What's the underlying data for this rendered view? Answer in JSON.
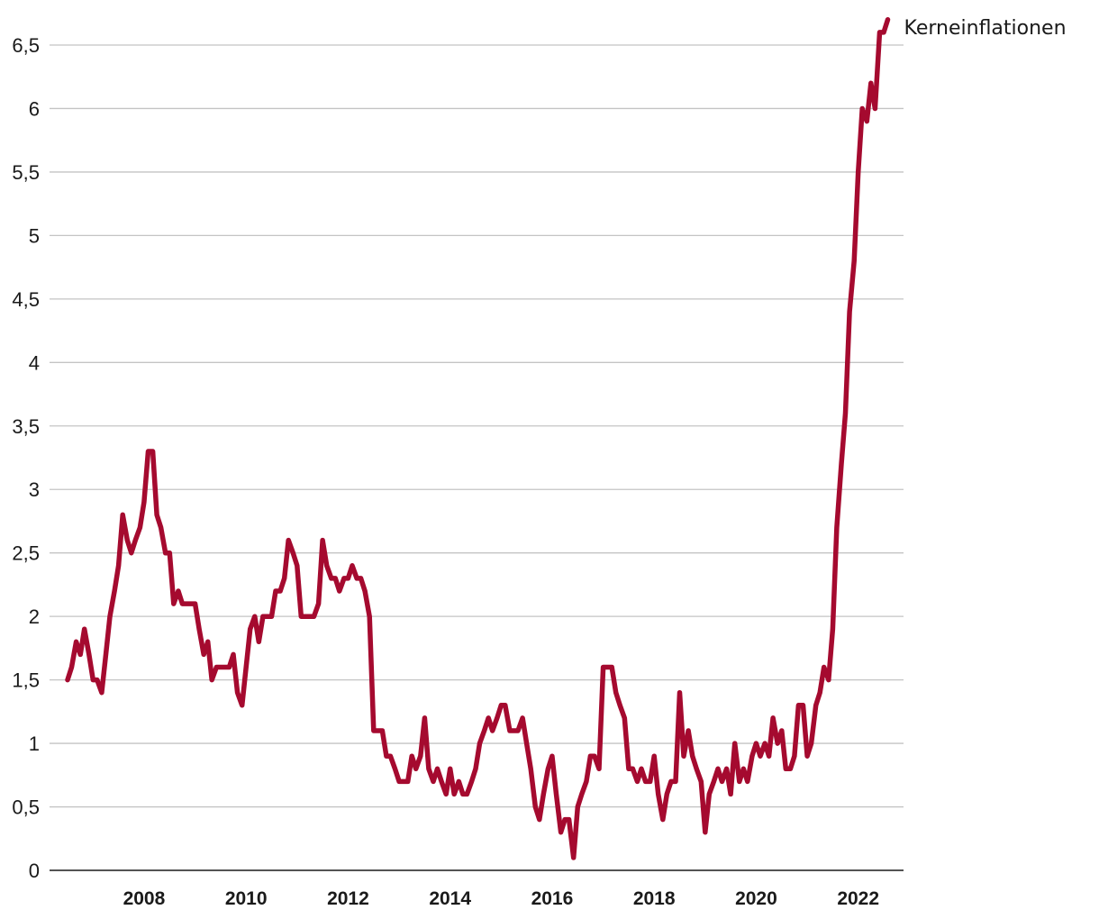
{
  "chart_data": {
    "type": "line",
    "title": "",
    "xlabel": "",
    "ylabel": "",
    "ylim": [
      0,
      6.5
    ],
    "y_ticks": [
      0,
      0.5,
      1,
      1.5,
      2,
      2.5,
      3,
      3.5,
      4,
      4.5,
      5,
      5.5,
      6,
      6.5
    ],
    "y_tick_labels": [
      "0",
      "0,5",
      "1",
      "1,5",
      "2",
      "2,5",
      "3",
      "3,5",
      "4",
      "4,5",
      "5",
      "5,5",
      "6",
      "6,5"
    ],
    "x_ticks": [
      2008,
      2010,
      2012,
      2014,
      2016,
      2018,
      2020,
      2022
    ],
    "x_tick_labels": [
      "2008",
      "2010",
      "2012",
      "2014",
      "2016",
      "2018",
      "2020",
      "2022"
    ],
    "xlim": [
      2007.0,
      2023.1
    ],
    "grid": "horizontal",
    "legend": "label at line end",
    "series": [
      {
        "name": "Kerneinflationen",
        "color": "#a50a2f",
        "points": [
          [
            2007.0,
            1.5
          ],
          [
            2007.08,
            1.6
          ],
          [
            2007.17,
            1.8
          ],
          [
            2007.25,
            1.7
          ],
          [
            2007.33,
            1.9
          ],
          [
            2007.42,
            1.7
          ],
          [
            2007.5,
            1.5
          ],
          [
            2007.58,
            1.5
          ],
          [
            2007.67,
            1.4
          ],
          [
            2007.75,
            1.7
          ],
          [
            2007.83,
            2.0
          ],
          [
            2007.92,
            2.2
          ],
          [
            2008.0,
            2.4
          ],
          [
            2008.08,
            2.8
          ],
          [
            2008.17,
            2.6
          ],
          [
            2008.25,
            2.5
          ],
          [
            2008.33,
            2.6
          ],
          [
            2008.42,
            2.7
          ],
          [
            2008.5,
            2.9
          ],
          [
            2008.58,
            3.3
          ],
          [
            2008.67,
            3.3
          ],
          [
            2008.75,
            2.8
          ],
          [
            2008.83,
            2.7
          ],
          [
            2008.92,
            2.5
          ],
          [
            2009.0,
            2.5
          ],
          [
            2009.08,
            2.1
          ],
          [
            2009.17,
            2.2
          ],
          [
            2009.25,
            2.1
          ],
          [
            2009.33,
            2.1
          ],
          [
            2009.42,
            2.1
          ],
          [
            2009.5,
            2.1
          ],
          [
            2009.58,
            1.9
          ],
          [
            2009.67,
            1.7
          ],
          [
            2009.75,
            1.8
          ],
          [
            2009.83,
            1.5
          ],
          [
            2009.92,
            1.6
          ],
          [
            2010.0,
            1.6
          ],
          [
            2010.08,
            1.6
          ],
          [
            2010.17,
            1.6
          ],
          [
            2010.25,
            1.7
          ],
          [
            2010.33,
            1.4
          ],
          [
            2010.42,
            1.3
          ],
          [
            2010.5,
            1.6
          ],
          [
            2010.58,
            1.9
          ],
          [
            2010.67,
            2.0
          ],
          [
            2010.75,
            1.8
          ],
          [
            2010.83,
            2.0
          ],
          [
            2010.92,
            2.0
          ],
          [
            2011.0,
            2.0
          ],
          [
            2011.08,
            2.2
          ],
          [
            2011.17,
            2.2
          ],
          [
            2011.25,
            2.3
          ],
          [
            2011.33,
            2.6
          ],
          [
            2011.42,
            2.5
          ],
          [
            2011.5,
            2.4
          ],
          [
            2011.58,
            2.0
          ],
          [
            2011.67,
            2.0
          ],
          [
            2011.75,
            2.0
          ],
          [
            2011.83,
            2.0
          ],
          [
            2011.92,
            2.1
          ],
          [
            2012.0,
            2.6
          ],
          [
            2012.08,
            2.4
          ],
          [
            2012.17,
            2.3
          ],
          [
            2012.25,
            2.3
          ],
          [
            2012.33,
            2.2
          ],
          [
            2012.42,
            2.3
          ],
          [
            2012.5,
            2.3
          ],
          [
            2012.58,
            2.4
          ],
          [
            2012.67,
            2.3
          ],
          [
            2012.75,
            2.3
          ],
          [
            2012.83,
            2.2
          ],
          [
            2012.92,
            2.0
          ],
          [
            2013.0,
            1.1
          ],
          [
            2013.08,
            1.1
          ],
          [
            2013.17,
            1.1
          ],
          [
            2013.25,
            0.9
          ],
          [
            2013.33,
            0.9
          ],
          [
            2013.42,
            0.8
          ],
          [
            2013.5,
            0.7
          ],
          [
            2013.58,
            0.7
          ],
          [
            2013.67,
            0.7
          ],
          [
            2013.75,
            0.9
          ],
          [
            2013.83,
            0.8
          ],
          [
            2013.92,
            0.9
          ],
          [
            2014.0,
            1.2
          ],
          [
            2014.08,
            0.8
          ],
          [
            2014.17,
            0.7
          ],
          [
            2014.25,
            0.8
          ],
          [
            2014.33,
            0.7
          ],
          [
            2014.42,
            0.6
          ],
          [
            2014.5,
            0.8
          ],
          [
            2014.58,
            0.6
          ],
          [
            2014.67,
            0.7
          ],
          [
            2014.75,
            0.6
          ],
          [
            2014.83,
            0.6
          ],
          [
            2014.92,
            0.7
          ],
          [
            2015.0,
            0.8
          ],
          [
            2015.08,
            1.0
          ],
          [
            2015.17,
            1.1
          ],
          [
            2015.25,
            1.2
          ],
          [
            2015.33,
            1.1
          ],
          [
            2015.42,
            1.2
          ],
          [
            2015.5,
            1.3
          ],
          [
            2015.58,
            1.3
          ],
          [
            2015.67,
            1.1
          ],
          [
            2015.75,
            1.1
          ],
          [
            2015.83,
            1.1
          ],
          [
            2015.92,
            1.2
          ],
          [
            2016.0,
            1.0
          ],
          [
            2016.08,
            0.8
          ],
          [
            2016.17,
            0.5
          ],
          [
            2016.25,
            0.4
          ],
          [
            2016.33,
            0.6
          ],
          [
            2016.42,
            0.8
          ],
          [
            2016.5,
            0.9
          ],
          [
            2016.58,
            0.6
          ],
          [
            2016.67,
            0.3
          ],
          [
            2016.75,
            0.4
          ],
          [
            2016.83,
            0.4
          ],
          [
            2016.92,
            0.1
          ],
          [
            2017.0,
            0.5
          ],
          [
            2017.08,
            0.6
          ],
          [
            2017.17,
            0.7
          ],
          [
            2017.25,
            0.9
          ],
          [
            2017.33,
            0.9
          ],
          [
            2017.42,
            0.8
          ],
          [
            2017.5,
            1.6
          ],
          [
            2017.58,
            1.6
          ],
          [
            2017.67,
            1.6
          ],
          [
            2017.75,
            1.4
          ],
          [
            2017.83,
            1.3
          ],
          [
            2017.92,
            1.2
          ],
          [
            2018.0,
            0.8
          ],
          [
            2018.08,
            0.8
          ],
          [
            2018.17,
            0.7
          ],
          [
            2018.25,
            0.8
          ],
          [
            2018.33,
            0.7
          ],
          [
            2018.42,
            0.7
          ],
          [
            2018.5,
            0.9
          ],
          [
            2018.58,
            0.6
          ],
          [
            2018.67,
            0.4
          ],
          [
            2018.75,
            0.6
          ],
          [
            2018.83,
            0.7
          ],
          [
            2018.92,
            0.7
          ],
          [
            2019.0,
            1.4
          ],
          [
            2019.08,
            0.9
          ],
          [
            2019.17,
            1.1
          ],
          [
            2019.25,
            0.9
          ],
          [
            2019.33,
            0.8
          ],
          [
            2019.42,
            0.7
          ],
          [
            2019.5,
            0.3
          ],
          [
            2019.58,
            0.6
          ],
          [
            2019.67,
            0.7
          ],
          [
            2019.75,
            0.8
          ],
          [
            2019.83,
            0.7
          ],
          [
            2019.92,
            0.8
          ],
          [
            2020.0,
            0.6
          ],
          [
            2020.08,
            1.0
          ],
          [
            2020.17,
            0.7
          ],
          [
            2020.25,
            0.8
          ],
          [
            2020.33,
            0.7
          ],
          [
            2020.42,
            0.9
          ],
          [
            2020.5,
            1.0
          ],
          [
            2020.58,
            0.9
          ],
          [
            2020.67,
            1.0
          ],
          [
            2020.75,
            0.9
          ],
          [
            2020.83,
            1.2
          ],
          [
            2020.92,
            1.0
          ],
          [
            2021.0,
            1.1
          ],
          [
            2021.08,
            0.8
          ],
          [
            2021.17,
            0.8
          ],
          [
            2021.25,
            0.9
          ],
          [
            2021.33,
            1.3
          ],
          [
            2021.42,
            1.3
          ],
          [
            2021.5,
            0.9
          ],
          [
            2021.58,
            1.0
          ],
          [
            2021.67,
            1.3
          ],
          [
            2021.75,
            1.4
          ],
          [
            2021.83,
            1.6
          ],
          [
            2021.92,
            1.5
          ],
          [
            2022.0,
            1.9
          ],
          [
            2022.08,
            2.7
          ],
          [
            2022.17,
            3.2
          ],
          [
            2022.25,
            3.6
          ],
          [
            2022.33,
            4.4
          ],
          [
            2022.42,
            4.8
          ],
          [
            2022.5,
            5.5
          ],
          [
            2022.58,
            6.0
          ],
          [
            2022.67,
            5.9
          ],
          [
            2022.75,
            6.2
          ],
          [
            2022.83,
            6.0
          ],
          [
            2022.92,
            6.6
          ],
          [
            2023.0,
            6.6
          ],
          [
            2023.08,
            6.7
          ]
        ]
      }
    ]
  }
}
